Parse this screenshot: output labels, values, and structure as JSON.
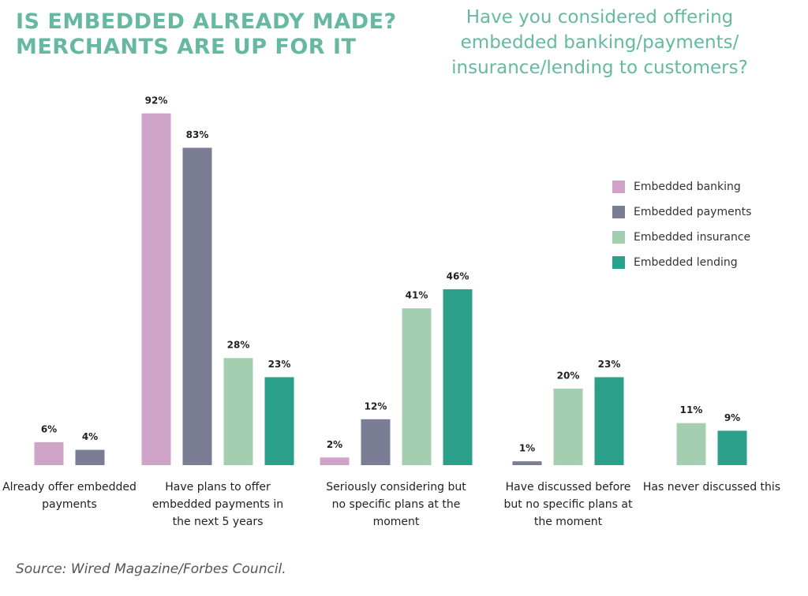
{
  "chart_data": {
    "type": "bar",
    "title": [
      "IS EMBEDDED ALREADY MADE?",
      "MERCHANTS ARE UP FOR IT"
    ],
    "subtitle": [
      "Have you considered offering",
      "embedded banking/payments/",
      "insurance/lending to customers?"
    ],
    "categories": [
      "Already offer embedded payments",
      "Have plans to offer embedded payments in the next 5 years",
      "Seriously considering but no specific plans at the moment",
      "Have discussed before but no specific plans at the moment",
      "Has never discussed this"
    ],
    "series": [
      {
        "name": "Embedded banking",
        "color": "#cfa3c8",
        "values": [
          6,
          92,
          2,
          null,
          null
        ],
        "value_labels": [
          "6%",
          "92%",
          "2%",
          null,
          null
        ]
      },
      {
        "name": "Embedded payments",
        "color": "#7b7d95",
        "values": [
          4,
          83,
          12,
          1,
          null
        ],
        "value_labels": [
          "4%",
          "83%",
          "12%",
          "1%",
          null
        ]
      },
      {
        "name": "Embedded insurance",
        "color": "#a3cfb0",
        "values": [
          null,
          28,
          41,
          20,
          11
        ],
        "value_labels": [
          null,
          "28%",
          "41%",
          "20%",
          "11%"
        ]
      },
      {
        "name": "Embedded lending",
        "color": "#2a9f8a",
        "values": [
          null,
          23,
          46,
          23,
          9
        ],
        "value_labels": [
          null,
          "23%",
          "46%",
          "23%",
          "9%"
        ]
      }
    ],
    "ylim": [
      0,
      100
    ],
    "legend": "right",
    "source": "Source: Wired Magazine/Forbes Council."
  }
}
